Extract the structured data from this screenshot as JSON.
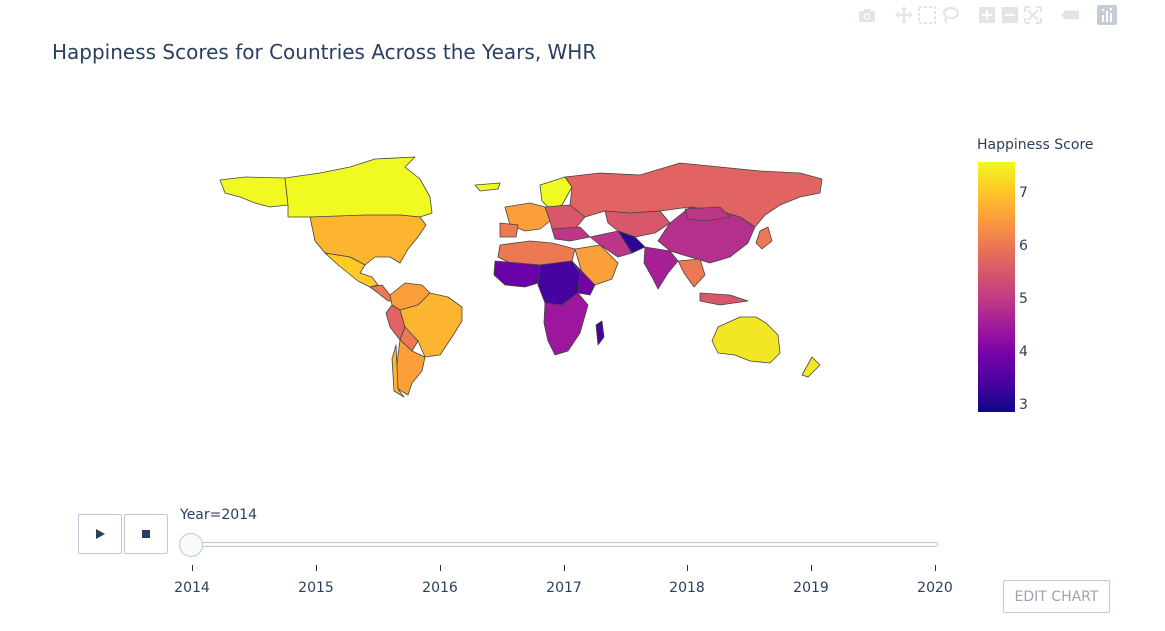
{
  "title": "Happiness Scores for Countries Across the Years, WHR",
  "modebar": {
    "buttons": [
      "camera-icon",
      "pan-icon",
      "box-select-icon",
      "lasso-icon",
      "zoom-in-icon",
      "zoom-out-icon",
      "autoscale-icon",
      "hover-icon",
      "plotly-logo-icon"
    ]
  },
  "colorbar": {
    "title": "Happiness Score",
    "ticks": [
      "7",
      "6",
      "5",
      "4",
      "3"
    ],
    "colors": [
      "#0d0887",
      "#46039f",
      "#7201a8",
      "#9c179e",
      "#bd3786",
      "#d8576b",
      "#ed7953",
      "#fb9f3a",
      "#fdca26",
      "#f0f921"
    ]
  },
  "slider": {
    "current_label": "Year=2014",
    "current_value": 2014,
    "ticks": [
      "2014",
      "2015",
      "2016",
      "2017",
      "2018",
      "2019",
      "2020"
    ]
  },
  "buttons": {
    "play": "play-icon",
    "stop": "stop-icon",
    "edit": "EDIT CHART"
  },
  "map_regions": [
    {
      "name": "North America - Canada",
      "color": "#f0f921"
    },
    {
      "name": "United States",
      "color": "#fdb42f"
    },
    {
      "name": "Mexico",
      "color": "#fdca26"
    },
    {
      "name": "Brazil",
      "color": "#fdb42f"
    },
    {
      "name": "Argentina",
      "color": "#fb9f3a"
    },
    {
      "name": "Russia",
      "color": "#e16462"
    },
    {
      "name": "China",
      "color": "#b52f8c"
    },
    {
      "name": "India",
      "color": "#a62098"
    },
    {
      "name": "Australia",
      "color": "#f3e725"
    },
    {
      "name": "Africa",
      "color": "#7201a8"
    }
  ]
}
